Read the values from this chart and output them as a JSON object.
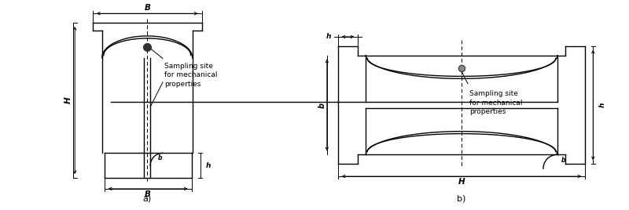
{
  "fig_width": 8.0,
  "fig_height": 2.68,
  "dpi": 100,
  "bg_color": "#ffffff",
  "lc": "#000000",
  "lw": 1.0,
  "tlw": 0.7,
  "label_a": "a)",
  "label_b": "b)",
  "ann_a": "Sampling site\nfor mechanical\nproperties",
  "ann_b": "Sampling site\nfor mechanical\nproperties"
}
